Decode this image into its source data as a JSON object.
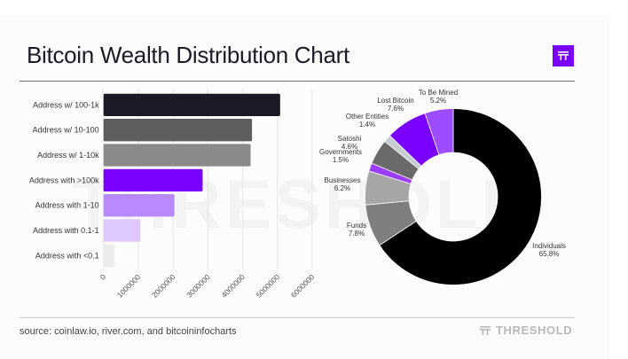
{
  "title": "Bitcoin Wealth Distribution Chart",
  "logo_icon": "threshold-logo-icon",
  "watermark": "THRESHOLD",
  "footer": {
    "source": "source: coinlaw.io, river.com, and bitcoininfocharts",
    "brand": "THRESHOLD"
  },
  "colors": {
    "brand_purple": "#7a00ff"
  },
  "chart_data": [
    {
      "type": "bar",
      "orientation": "horizontal",
      "title": "",
      "xlabel": "",
      "ylabel": "",
      "categories": [
        "Address w/ 100-1k",
        "Address w/ 10-100",
        "Address w/ 1-10k",
        "Address with >100k",
        "Address with 1-10",
        "Address with 0.1-1",
        "Address with <0.1"
      ],
      "values": [
        5080000,
        4270000,
        4230000,
        2850000,
        2040000,
        1060000,
        310000
      ],
      "colors": [
        "#1b1a26",
        "#5e5e5e",
        "#8a8a8a",
        "#7a00ff",
        "#b98aff",
        "#dfc8ff",
        "#ececec"
      ],
      "xlim": [
        0,
        6000000
      ],
      "xticks": [
        "0",
        "1000000",
        "2000000",
        "3000000",
        "4000000",
        "5000000",
        "6000000"
      ],
      "grid": true
    },
    {
      "type": "pie",
      "donut": true,
      "title": "",
      "slices": [
        {
          "label": "Individuals",
          "value": 65.8,
          "display": "65.8%",
          "color": "#000000"
        },
        {
          "label": "Funds",
          "value": 7.8,
          "display": "7.8%",
          "color": "#7f7f7f"
        },
        {
          "label": "Businesses",
          "value": 6.2,
          "display": "6.2%",
          "color": "#a6a6a6"
        },
        {
          "label": "Governments",
          "value": 1.5,
          "display": "1.5%",
          "color": "#9b3dfb"
        },
        {
          "label": "Satoshi",
          "value": 4.6,
          "display": "4.6%",
          "color": "#6a6a6a"
        },
        {
          "label": "Other Entities",
          "value": 1.4,
          "display": "1.4%",
          "color": "#c6cdd0"
        },
        {
          "label": "Lost Bitcoin",
          "value": 7.6,
          "display": "7.6%",
          "color": "#7a00ff"
        },
        {
          "label": "To Be Mined",
          "value": 5.2,
          "display": "5.2%",
          "color": "#9b4dff"
        }
      ]
    }
  ]
}
